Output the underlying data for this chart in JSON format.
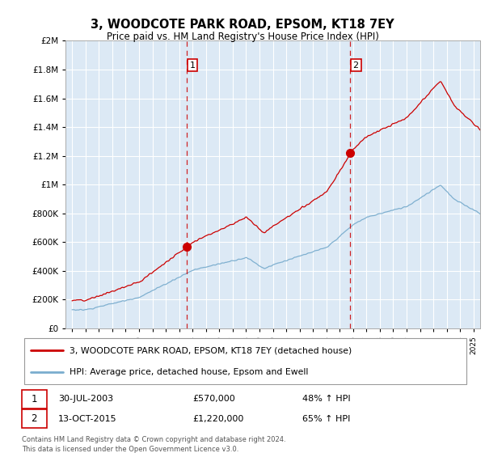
{
  "title": "3, WOODCOTE PARK ROAD, EPSOM, KT18 7EY",
  "subtitle": "Price paid vs. HM Land Registry's House Price Index (HPI)",
  "legend_line1": "3, WOODCOTE PARK ROAD, EPSOM, KT18 7EY (detached house)",
  "legend_line2": "HPI: Average price, detached house, Epsom and Ewell",
  "sale1_label": "1",
  "sale2_label": "2",
  "sale1_date": "30-JUL-2003",
  "sale1_price": 570000,
  "sale1_price_str": "£570,000",
  "sale1_hpi": "48% ↑ HPI",
  "sale2_date": "13-OCT-2015",
  "sale2_price": 1220000,
  "sale2_price_str": "£1,220,000",
  "sale2_hpi": "65% ↑ HPI",
  "footer1": "Contains HM Land Registry data © Crown copyright and database right 2024.",
  "footer2": "This data is licensed under the Open Government Licence v3.0.",
  "red_color": "#cc0000",
  "blue_color": "#7aadce",
  "background_plot": "#dce9f5",
  "background_fig": "#ffffff",
  "grid_color": "#ffffff",
  "spine_color": "#aaaaaa",
  "ylim": [
    0,
    2000000
  ],
  "yticks": [
    0,
    200000,
    400000,
    600000,
    800000,
    1000000,
    1200000,
    1400000,
    1600000,
    1800000,
    2000000
  ],
  "xlim_start": 1994.5,
  "xlim_end": 2025.5,
  "sale1_x": 2003.58,
  "sale2_x": 2015.79
}
